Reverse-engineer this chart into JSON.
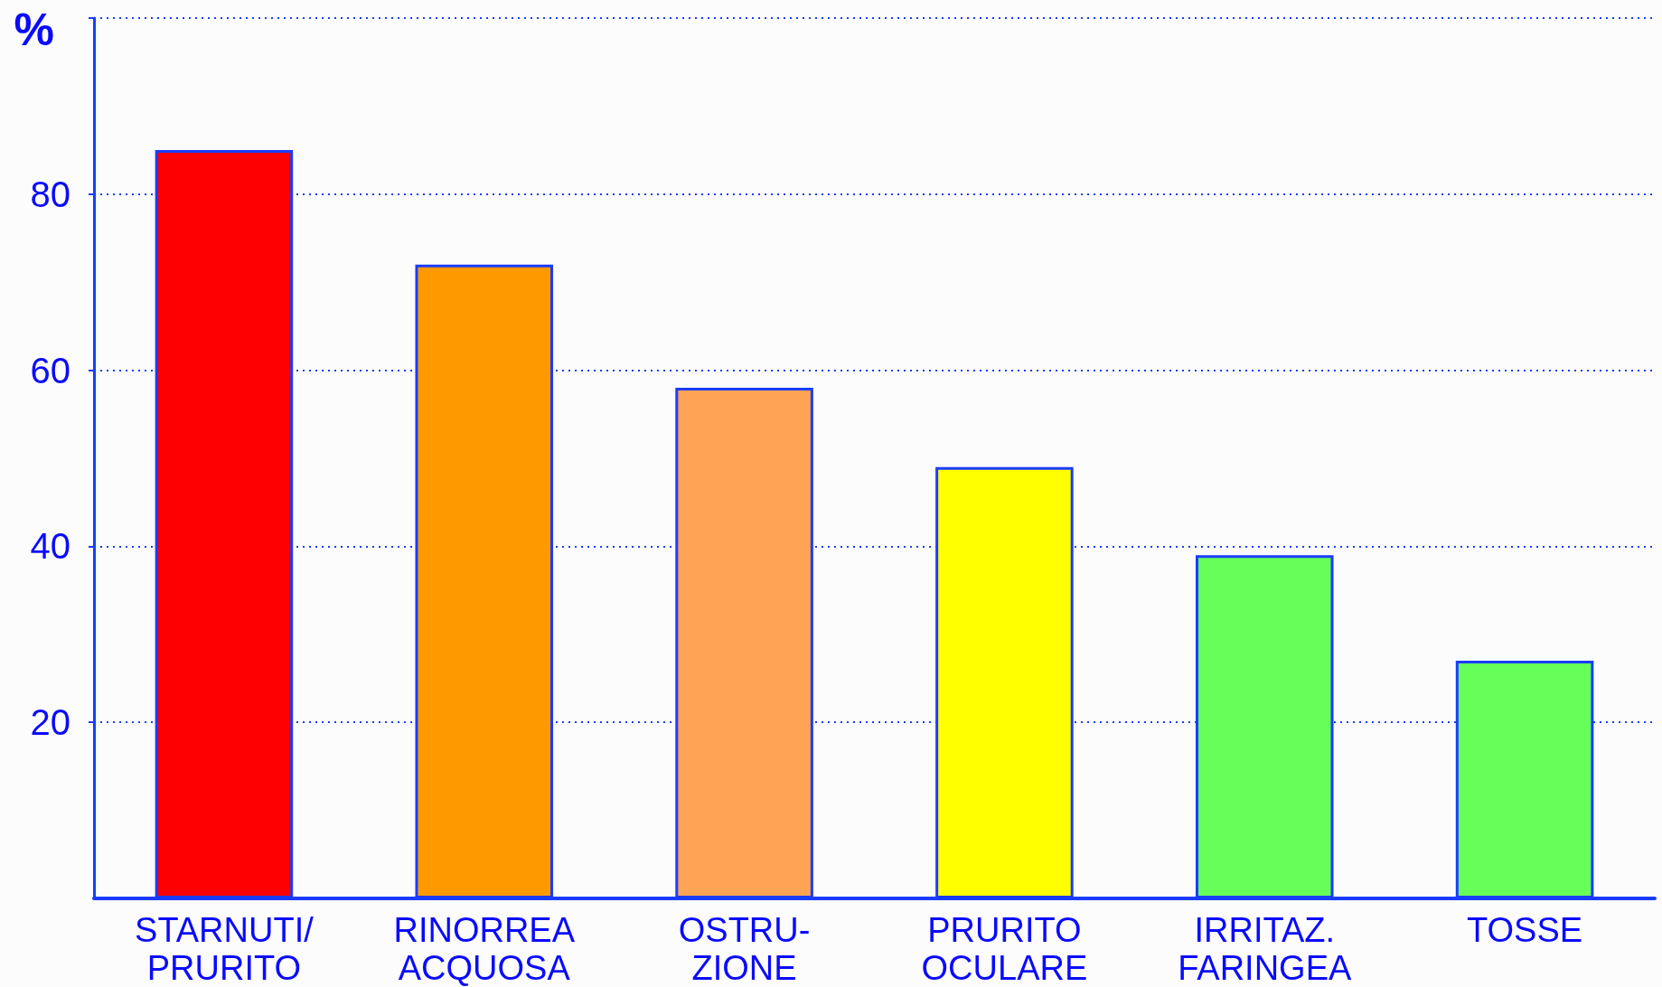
{
  "chart_data": {
    "type": "bar",
    "ylabel": "%",
    "categories": [
      "STARNUTI/\nPRURITO",
      "RINORREA\nACQUOSA",
      "OSTRU-\nZIONE",
      "PRURITO\nOCULARE",
      "IRRITAZ.\nFARINGEA",
      "TOSSE"
    ],
    "values": [
      85,
      72,
      58,
      49,
      39,
      27
    ],
    "colors": [
      "#ff0000",
      "#ff9900",
      "#ffa355",
      "#ffff00",
      "#66ff59",
      "#66ff59"
    ],
    "ylim": [
      0,
      100
    ],
    "yticks": [
      20,
      40,
      60,
      80,
      {
        "value": 100,
        "label": null
      }
    ],
    "grid": "y"
  }
}
